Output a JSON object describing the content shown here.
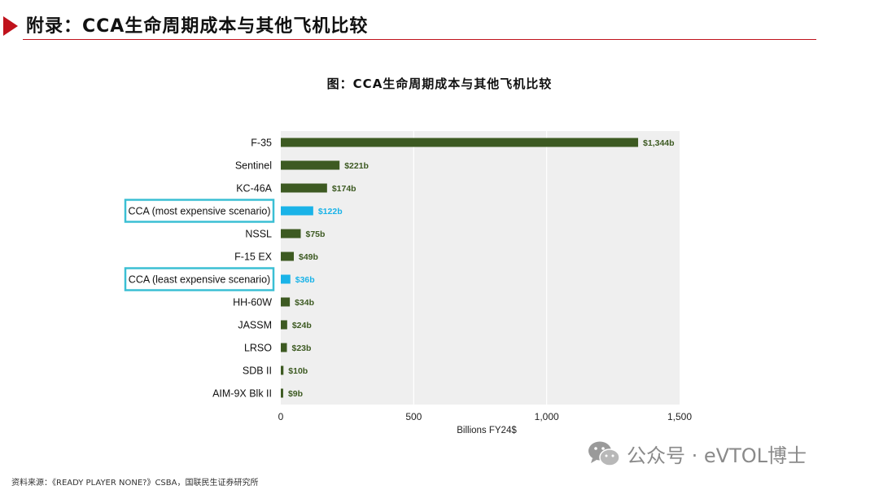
{
  "header": {
    "title": "附录：CCA生命周期成本与其他飞机比较"
  },
  "figure": {
    "caption": "图：CCA生命周期成本与其他飞机比较"
  },
  "chart_data": {
    "type": "bar",
    "orientation": "horizontal",
    "title": "",
    "xlabel": "Billions FY24$",
    "ylabel": "",
    "xlim": [
      0,
      1500
    ],
    "xticks": [
      0,
      500,
      1000,
      1500
    ],
    "xtick_labels": [
      "0",
      "500",
      "1,000",
      "1,500"
    ],
    "grid": true,
    "categories": [
      "F-35",
      "Sentinel",
      "KC-46A",
      "CCA (most expensive scenario)",
      "NSSL",
      "F-15 EX",
      "CCA (least expensive scenario)",
      "HH-60W",
      "JASSM",
      "LRSO",
      "SDB II",
      "AIM-9X Blk II"
    ],
    "values": [
      1344,
      221,
      174,
      122,
      75,
      49,
      36,
      34,
      24,
      23,
      10,
      9
    ],
    "value_labels": [
      "$1,344b",
      "$221b",
      "$174b",
      "$122b",
      "$75b",
      "$49b",
      "$36b",
      "$34b",
      "$24b",
      "$23b",
      "$10b",
      "$9b"
    ],
    "highlighted": [
      false,
      false,
      false,
      true,
      false,
      false,
      true,
      false,
      false,
      false,
      false,
      false
    ],
    "colors": {
      "default_bar": "#3d5a22",
      "highlight_bar": "#1ab3e8",
      "highlight_box": "#3bbfd4",
      "plot_background": "#efefef",
      "grid": "#ffffff"
    }
  },
  "footer": {
    "source": "资料来源：《READY PLAYER NONE?》CSBA，国联民生证券研究所"
  },
  "watermark": {
    "text": "公众号 · eVTOL博士",
    "icon": "wechat-icon"
  }
}
